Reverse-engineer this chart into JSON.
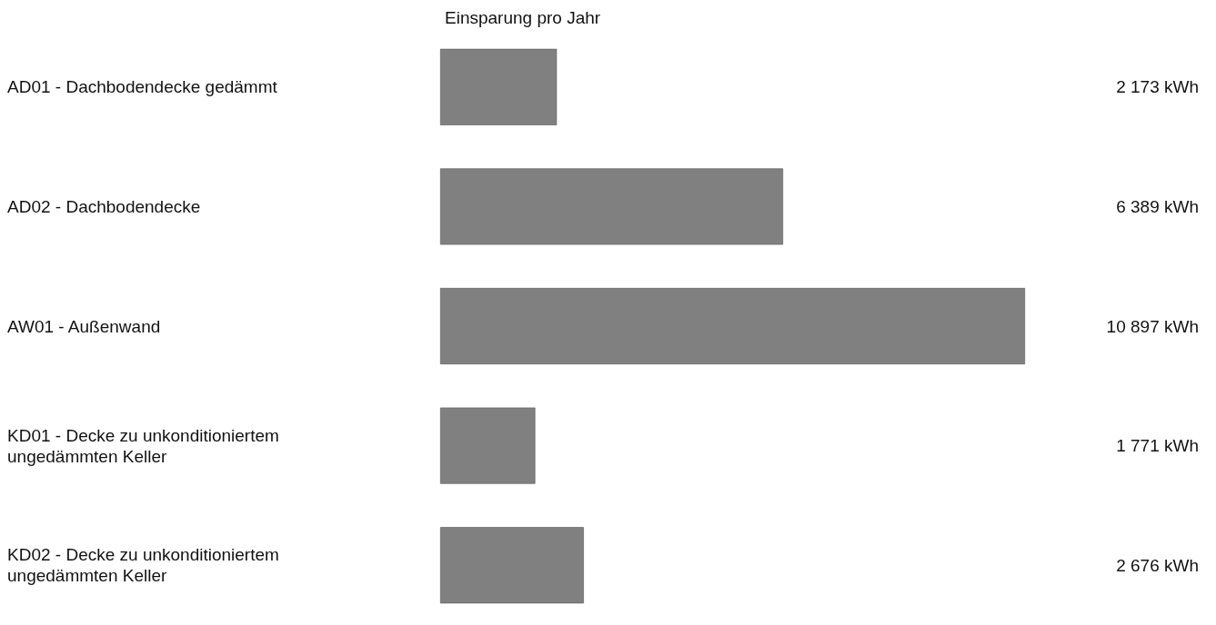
{
  "chart_data": {
    "type": "bar",
    "orientation": "horizontal",
    "title": "Einsparung pro Jahr",
    "categories": [
      "AD01 - Dachbodendecke gedämmt",
      "AD02 - Dachbodendecke",
      "AW01 - Außenwand",
      "KD01 - Decke zu unkonditioniertem ungedämmten Keller",
      "KD02 - Decke zu unkonditioniertem ungedämmten Keller"
    ],
    "values": [
      2173,
      6389,
      10897,
      1771,
      2676
    ],
    "value_labels": [
      "2 173 kWh",
      "6 389 kWh",
      "10 897 kWh",
      "1 771 kWh",
      "2 676 kWh"
    ],
    "color": "#808080"
  }
}
